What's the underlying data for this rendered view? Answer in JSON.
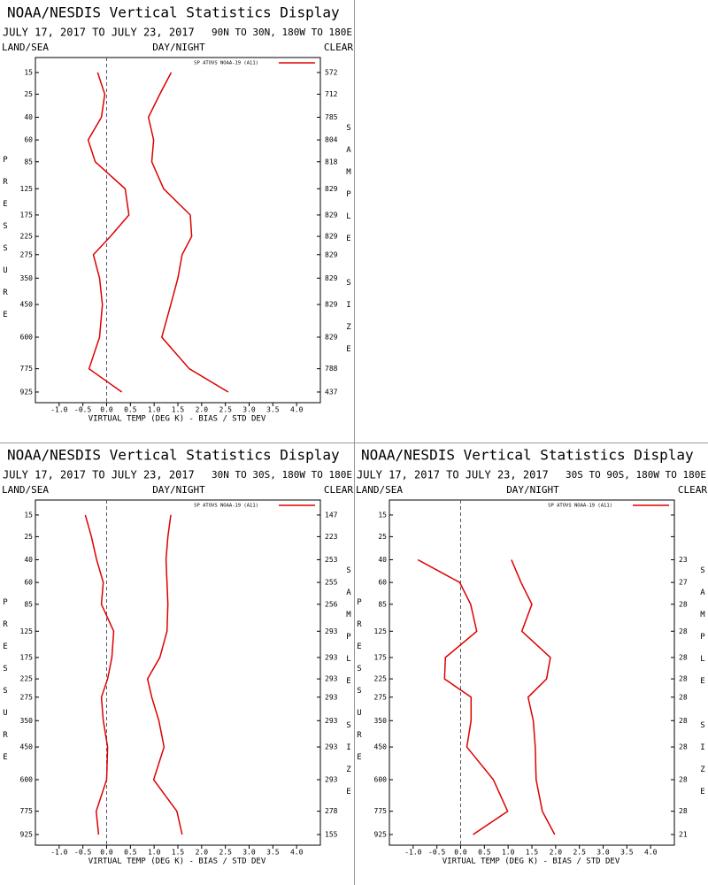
{
  "chart_data": [
    {
      "type": "line",
      "title": "NOAA/NESDIS Vertical Statistics Display",
      "date_range": "JULY 17, 2017 TO JULY 23, 2017",
      "region": "90N TO 30N, 180W TO 180E",
      "surface": "LAND/SEA",
      "time_of_day": "DAY/NIGHT",
      "sky": "CLEAR",
      "y_label": "PRESSURE",
      "y2_label": "SAMPLE SIZE",
      "x_label": "VIRTUAL TEMP (DEG K) - BIAS / STD DEV",
      "y": [
        15,
        25,
        40,
        60,
        85,
        125,
        175,
        225,
        275,
        350,
        450,
        600,
        775,
        925
      ],
      "ylim": [
        10,
        1000
      ],
      "xlim": [
        -1.5,
        4.5
      ],
      "xticks": [
        {
          "value": -1,
          "label": "-1.0"
        },
        -0.5,
        {
          "value": 0,
          "label": "0.0"
        },
        0.5,
        {
          "value": 1,
          "label": "1.0"
        },
        1.5,
        {
          "value": 2,
          "label": "2.0"
        },
        2.5,
        {
          "value": 3,
          "label": "3.0"
        },
        3.5,
        {
          "value": 4,
          "label": "4.0"
        }
      ],
      "sample_size": [
        572,
        712,
        785,
        804,
        818,
        829,
        829,
        829,
        829,
        829,
        829,
        829,
        788,
        437
      ],
      "series": [
        {
          "name": "SP ATOVS NOAA-19 (A11)",
          "color": "#dd0000",
          "bias": [
            -0.19,
            -0.04,
            -0.11,
            -0.39,
            -0.24,
            0.39,
            0.47,
            0.08,
            -0.28,
            -0.15,
            -0.09,
            -0.15,
            -0.37,
            0.32
          ],
          "std_dev": [
            1.36,
            1.12,
            0.88,
            0.99,
            0.95,
            1.2,
            1.76,
            1.79,
            1.59,
            1.5,
            1.35,
            1.16,
            1.74,
            2.56
          ]
        }
      ]
    },
    {
      "type": "line",
      "title": "NOAA/NESDIS Vertical Statistics Display",
      "date_range": "JULY 17, 2017 TO JULY 23, 2017",
      "region": "30N TO 30S, 180W TO 180E",
      "surface": "LAND/SEA",
      "time_of_day": "DAY/NIGHT",
      "sky": "CLEAR",
      "y_label": "PRESSURE",
      "y2_label": "SAMPLE SIZE",
      "x_label": "VIRTUAL TEMP (DEG K) - BIAS / STD DEV",
      "y": [
        15,
        25,
        40,
        60,
        85,
        125,
        175,
        225,
        275,
        350,
        450,
        600,
        775,
        925
      ],
      "ylim": [
        10,
        1000
      ],
      "xlim": [
        -1.5,
        4.5
      ],
      "xticks": [
        {
          "value": -1,
          "label": "-1.0"
        },
        -0.5,
        {
          "value": 0,
          "label": "0.0"
        },
        0.5,
        {
          "value": 1,
          "label": "1.0"
        },
        1.5,
        {
          "value": 2,
          "label": "2.0"
        },
        2.5,
        {
          "value": 3,
          "label": "3.0"
        },
        3.5,
        {
          "value": 4,
          "label": "4.0"
        }
      ],
      "sample_size": [
        147,
        223,
        253,
        255,
        256,
        293,
        293,
        293,
        293,
        293,
        293,
        293,
        278,
        155
      ],
      "series": [
        {
          "name": "SP ATOVS NOAA-19 (A11)",
          "color": "#dd0000",
          "bias": [
            -0.45,
            -0.32,
            -0.21,
            -0.07,
            -0.11,
            0.15,
            0.11,
            0.02,
            -0.11,
            -0.07,
            0.02,
            0.0,
            -0.22,
            -0.17
          ],
          "std_dev": [
            1.35,
            1.29,
            1.25,
            1.27,
            1.29,
            1.27,
            1.12,
            0.86,
            0.95,
            1.1,
            1.21,
            0.99,
            1.48,
            1.59
          ]
        }
      ]
    },
    {
      "type": "line",
      "title": "NOAA/NESDIS Vertical Statistics Display",
      "date_range": "JULY 17, 2017 TO JULY 23, 2017",
      "region": "30S TO 90S, 180W TO 180E",
      "surface": "LAND/SEA",
      "time_of_day": "DAY/NIGHT",
      "sky": "CLEAR",
      "y_label": "PRESSURE",
      "y2_label": "SAMPLE SIZE",
      "x_label": "VIRTUAL TEMP (DEG K) - BIAS / STD DEV",
      "y": [
        15,
        25,
        40,
        60,
        85,
        125,
        175,
        225,
        275,
        350,
        450,
        600,
        775,
        925
      ],
      "ylim": [
        10,
        1000
      ],
      "xlim": [
        -1.5,
        4.5
      ],
      "xticks": [
        {
          "value": -1,
          "label": "-1.0"
        },
        -0.5,
        {
          "value": 0,
          "label": "0.0"
        },
        0.5,
        {
          "value": 1,
          "label": "1.0"
        },
        1.5,
        {
          "value": 2,
          "label": "2.0"
        },
        2.5,
        {
          "value": 3,
          "label": "3.0"
        },
        3.5,
        {
          "value": 4,
          "label": "4.0"
        }
      ],
      "sample_size": [
        null,
        null,
        23,
        27,
        28,
        28,
        28,
        28,
        28,
        28,
        28,
        28,
        28,
        21
      ],
      "series": [
        {
          "name": "SP ATOVS NOAA-19 (A11)",
          "color": "#dd0000",
          "bias": [
            null,
            null,
            -0.9,
            -0.02,
            0.21,
            0.34,
            -0.32,
            -0.34,
            0.22,
            0.22,
            0.13,
            0.69,
            0.99,
            0.26
          ],
          "std_dev": [
            null,
            null,
            1.07,
            1.27,
            1.5,
            1.29,
            1.89,
            1.81,
            1.42,
            1.53,
            1.57,
            1.59,
            1.72,
            1.98
          ]
        }
      ]
    }
  ]
}
